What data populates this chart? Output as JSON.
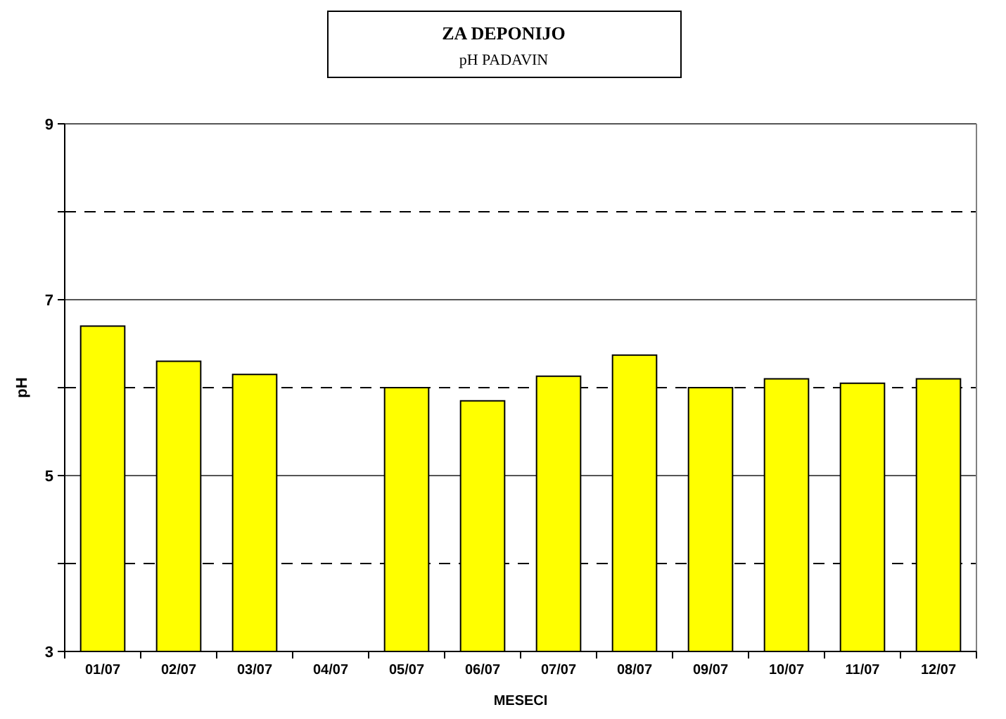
{
  "chart_data": {
    "type": "bar",
    "title": "ZA DEPONIJO",
    "subtitle": "pH PADAVIN",
    "xlabel": "MESECI",
    "ylabel": "pH",
    "categories": [
      "01/07",
      "02/07",
      "03/07",
      "04/07",
      "05/07",
      "06/07",
      "07/07",
      "08/07",
      "09/07",
      "10/07",
      "11/07",
      "12/07"
    ],
    "values": [
      6.7,
      6.3,
      6.15,
      null,
      6.0,
      5.85,
      6.13,
      6.37,
      6.0,
      6.1,
      6.05,
      6.1
    ],
    "color": "#ffff00",
    "ylim": [
      3,
      9
    ],
    "yticks": [
      3,
      {
        "value": 4,
        "label": null
      },
      5,
      {
        "value": 6,
        "label": null
      },
      7,
      {
        "value": 8,
        "label": null
      },
      9
    ],
    "grid": true
  }
}
